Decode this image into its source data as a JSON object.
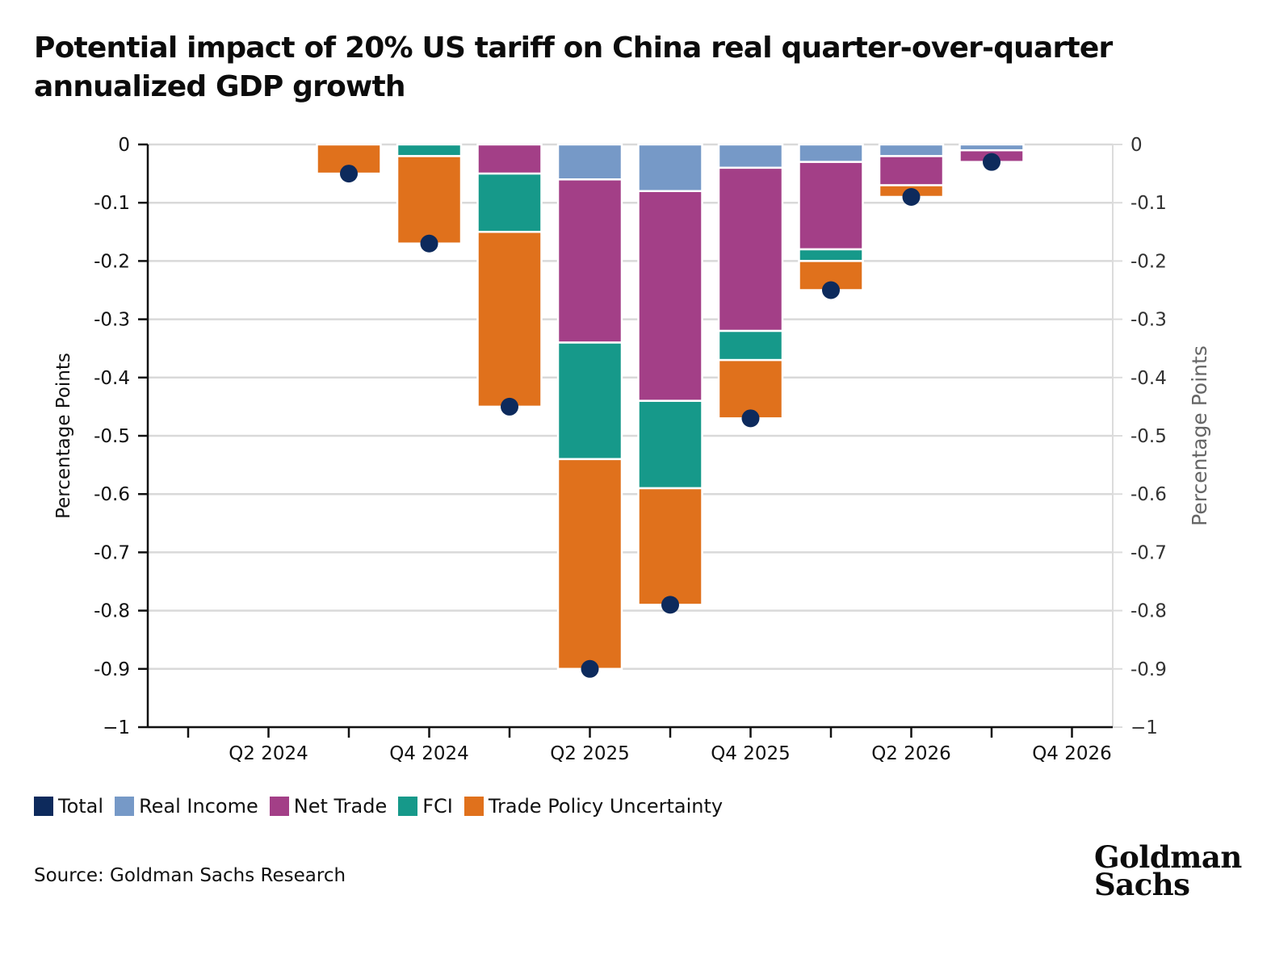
{
  "title": "Potential impact of 20% US tariff on China real quarter-over-quarter annualized GDP growth",
  "source": "Source: Goldman Sachs Research",
  "logo": {
    "line1": "Goldman",
    "line2": "Sachs"
  },
  "legend": [
    {
      "label": "Total",
      "color": "#0d2a5c"
    },
    {
      "label": "Real Income",
      "color": "#7699c7"
    },
    {
      "label": "Net Trade",
      "color": "#a33f87"
    },
    {
      "label": "FCI",
      "color": "#16998a"
    },
    {
      "label": "Trade Policy Uncertainty",
      "color": "#e0711c"
    }
  ],
  "chart_data": {
    "type": "bar",
    "stacked": true,
    "categories": [
      "Q1 2024",
      "Q2 2024",
      "Q3 2024",
      "Q4 2024",
      "Q1 2025",
      "Q2 2025",
      "Q3 2025",
      "Q4 2025",
      "Q1 2026",
      "Q2 2026",
      "Q3 2026",
      "Q4 2026"
    ],
    "x_tick_labels": [
      "Q2 2024",
      "Q4 2024",
      "Q2 2025",
      "Q4 2025",
      "Q2 2026",
      "Q4 2026"
    ],
    "series": [
      {
        "name": "Real Income",
        "color": "#7699c7",
        "values": [
          0,
          0,
          0,
          0,
          0,
          -0.06,
          -0.08,
          -0.04,
          -0.03,
          -0.02,
          -0.01,
          0
        ]
      },
      {
        "name": "Net Trade",
        "color": "#a33f87",
        "values": [
          0,
          0,
          0,
          0,
          -0.05,
          -0.28,
          -0.36,
          -0.28,
          -0.15,
          -0.05,
          -0.02,
          0
        ]
      },
      {
        "name": "FCI",
        "color": "#16998a",
        "values": [
          0,
          0,
          0,
          -0.02,
          -0.1,
          -0.2,
          -0.15,
          -0.05,
          -0.02,
          0,
          0,
          0
        ]
      },
      {
        "name": "Trade Policy Uncertainty",
        "color": "#e0711c",
        "values": [
          0,
          0,
          -0.05,
          -0.15,
          -0.3,
          -0.36,
          -0.2,
          -0.1,
          -0.05,
          -0.02,
          0,
          0
        ]
      }
    ],
    "total": {
      "name": "Total",
      "color": "#0d2a5c",
      "values": [
        null,
        null,
        -0.05,
        -0.17,
        -0.45,
        -0.9,
        -0.79,
        -0.47,
        -0.25,
        -0.09,
        -0.03,
        null
      ]
    },
    "ylabel": "Percentage Points",
    "y2label": "Percentage Points",
    "ylim": [
      -1,
      0
    ],
    "yticks": [
      0,
      -0.1,
      -0.2,
      -0.3,
      -0.4,
      -0.5,
      -0.6,
      -0.7,
      -0.8,
      -0.9,
      -1
    ],
    "ytick_labels": [
      "0",
      "-0.1",
      "-0.2",
      "-0.3",
      "-0.4",
      "-0.5",
      "-0.6",
      "-0.7",
      "-0.8",
      "-0.9",
      "−1"
    ],
    "grid": true,
    "legend_position": "bottom-left"
  }
}
